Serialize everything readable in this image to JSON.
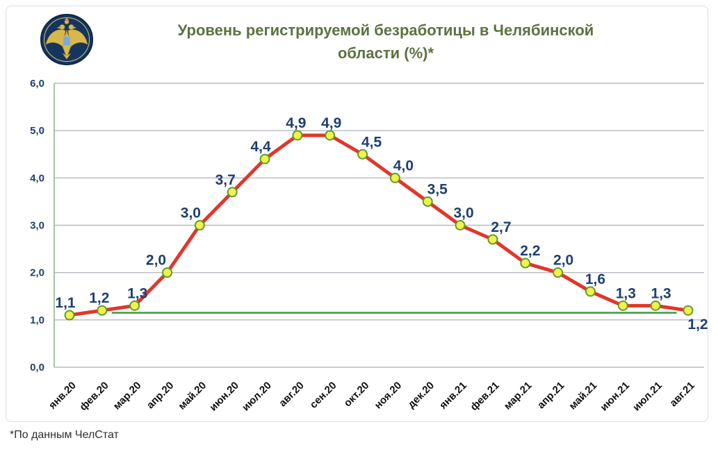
{
  "header": {
    "title_line1": "Уровень регистрируемой безработицы в Челябинской",
    "title_line2": "области (%)*",
    "title_color": "#5e7141",
    "logo_icon": "employment-service-emblem"
  },
  "footer": {
    "note": "*По данным ЧелСтат"
  },
  "chart_data": {
    "type": "line",
    "title": "Уровень регистрируемой безработицы в Челябинской области (%)*",
    "categories": [
      "янв.20",
      "фев.20",
      "мар.20",
      "апр.20",
      "май.20",
      "июн.20",
      "июл.20",
      "авг.20",
      "сен.20",
      "окт.20",
      "ноя.20",
      "дек.20",
      "янв.21",
      "фев.21",
      "мар.21",
      "апр.21",
      "май.21",
      "июн.21",
      "июл.21",
      "авг.21"
    ],
    "series": [
      {
        "name": "Уровень регистрируемой безработицы",
        "values": [
          1.1,
          1.2,
          1.3,
          2.0,
          3.0,
          3.7,
          4.4,
          4.9,
          4.9,
          4.5,
          4.0,
          3.5,
          3.0,
          2.7,
          2.2,
          2.0,
          1.6,
          1.3,
          1.3,
          1.2
        ],
        "labels": [
          "1,1",
          "1,2",
          "1,3",
          "2,0",
          "3,0",
          "3,7",
          "4,4",
          "4,9",
          "4,9",
          "4,5",
          "4,0",
          "3,5",
          "3,0",
          "2,7",
          "2,2",
          "2,0",
          "1,6",
          "1,3",
          "1,3",
          "1,2"
        ],
        "line_color": "#e0372b",
        "marker_fill": "#f1f24b",
        "marker_stroke": "#5f9a2f"
      }
    ],
    "reference_line": {
      "value": 1.15,
      "color": "#3f9e42",
      "span_indices": [
        1.3,
        18.65
      ]
    },
    "ylim": [
      0,
      6
    ],
    "yticks": {
      "values": [
        0,
        1,
        2,
        3,
        4,
        5,
        6
      ],
      "labels": [
        "0,0",
        "1,0",
        "2,0",
        "3,0",
        "4,0",
        "5,0",
        "6,0"
      ]
    },
    "xlabel": "",
    "ylabel": "",
    "grid": true,
    "gridline_color": "#b5bac0",
    "axis_line_color": "#8bb78d",
    "value_label_color": "#1f3f6e",
    "xtick_color": "#111111",
    "ytick_color": "#1f3f6e",
    "legend_position": "none"
  }
}
